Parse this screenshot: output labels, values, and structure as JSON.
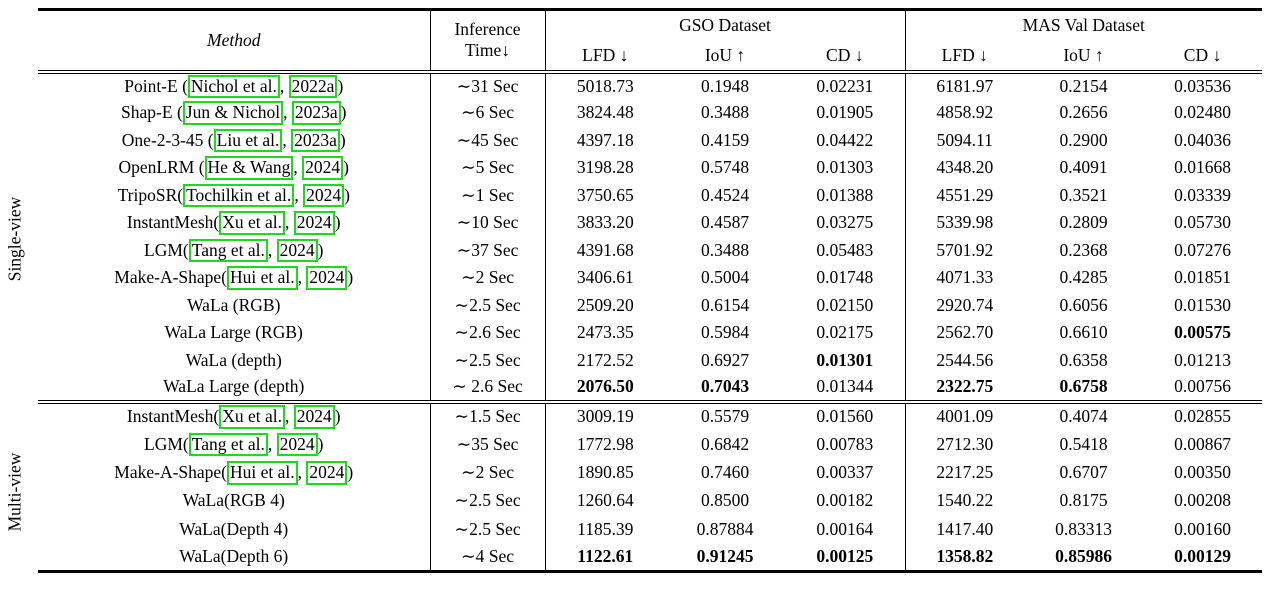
{
  "citation_box_color": "#20d820",
  "header": {
    "method": "Method",
    "time_line1": "Inference",
    "time_line2": "Time↓",
    "gso": "GSO Dataset",
    "mas": "MAS Val Dataset",
    "metrics": [
      "LFD ↓",
      "IoU ↑",
      "CD ↓",
      "LFD ↓",
      "IoU ↑",
      "CD ↓"
    ]
  },
  "groups": [
    {
      "label": "Single-view",
      "rows": [
        {
          "method_parts": [
            {
              "t": "Point-E (",
              "box": false
            },
            {
              "t": "Nichol et al.",
              "box": true
            },
            {
              "t": ", ",
              "box": false
            },
            {
              "t": "2022a",
              "box": true
            },
            {
              "t": ")",
              "box": false
            }
          ],
          "time": "∼31 Sec",
          "values": [
            "5018.73",
            "0.1948",
            "0.02231",
            "6181.97",
            "0.2154",
            "0.03536"
          ],
          "bold": [
            false,
            false,
            false,
            false,
            false,
            false
          ]
        },
        {
          "method_parts": [
            {
              "t": "Shap-E (",
              "box": false
            },
            {
              "t": "Jun & Nichol",
              "box": true
            },
            {
              "t": ", ",
              "box": false
            },
            {
              "t": "2023a",
              "box": true
            },
            {
              "t": ")",
              "box": false
            }
          ],
          "time": "∼6 Sec",
          "values": [
            "3824.48",
            "0.3488",
            "0.01905",
            "4858.92",
            "0.2656",
            "0.02480"
          ],
          "bold": [
            false,
            false,
            false,
            false,
            false,
            false
          ]
        },
        {
          "method_parts": [
            {
              "t": "One-2-3-45 (",
              "box": false
            },
            {
              "t": "Liu et al.",
              "box": true
            },
            {
              "t": ", ",
              "box": false
            },
            {
              "t": "2023a",
              "box": true
            },
            {
              "t": ")",
              "box": false
            }
          ],
          "time": "∼45 Sec",
          "values": [
            "4397.18",
            "0.4159",
            "0.04422",
            "5094.11",
            "0.2900",
            "0.04036"
          ],
          "bold": [
            false,
            false,
            false,
            false,
            false,
            false
          ]
        },
        {
          "method_parts": [
            {
              "t": "OpenLRM (",
              "box": false
            },
            {
              "t": "He & Wang",
              "box": true
            },
            {
              "t": ", ",
              "box": false
            },
            {
              "t": "2024",
              "box": true
            },
            {
              "t": ")",
              "box": false
            }
          ],
          "time": "∼5 Sec",
          "values": [
            "3198.28",
            "0.5748",
            "0.01303",
            "4348.20",
            "0.4091",
            "0.01668"
          ],
          "bold": [
            false,
            false,
            false,
            false,
            false,
            false
          ]
        },
        {
          "method_parts": [
            {
              "t": "TripoSR(",
              "box": false
            },
            {
              "t": "Tochilkin et al.",
              "box": true
            },
            {
              "t": ", ",
              "box": false
            },
            {
              "t": "2024",
              "box": true
            },
            {
              "t": ")",
              "box": false
            }
          ],
          "time": "∼1 Sec",
          "values": [
            "3750.65",
            "0.4524",
            "0.01388",
            "4551.29",
            "0.3521",
            "0.03339"
          ],
          "bold": [
            false,
            false,
            false,
            false,
            false,
            false
          ]
        },
        {
          "method_parts": [
            {
              "t": "InstantMesh(",
              "box": false
            },
            {
              "t": "Xu et al.",
              "box": true
            },
            {
              "t": ", ",
              "box": false
            },
            {
              "t": "2024",
              "box": true
            },
            {
              "t": ")",
              "box": false
            }
          ],
          "time": "∼10 Sec",
          "values": [
            "3833.20",
            "0.4587",
            "0.03275",
            "5339.98",
            "0.2809",
            "0.05730"
          ],
          "bold": [
            false,
            false,
            false,
            false,
            false,
            false
          ]
        },
        {
          "method_parts": [
            {
              "t": "LGM(",
              "box": false
            },
            {
              "t": "Tang et al.",
              "box": true
            },
            {
              "t": ", ",
              "box": false
            },
            {
              "t": "2024",
              "box": true
            },
            {
              "t": ")",
              "box": false
            }
          ],
          "time": "∼37 Sec",
          "values": [
            "4391.68",
            "0.3488",
            "0.05483",
            "5701.92",
            "0.2368",
            "0.07276"
          ],
          "bold": [
            false,
            false,
            false,
            false,
            false,
            false
          ]
        },
        {
          "method_parts": [
            {
              "t": "Make-A-Shape(",
              "box": false
            },
            {
              "t": "Hui et al.",
              "box": true
            },
            {
              "t": ", ",
              "box": false
            },
            {
              "t": "2024",
              "box": true
            },
            {
              "t": ")",
              "box": false
            }
          ],
          "time": "∼2 Sec",
          "values": [
            "3406.61",
            "0.5004",
            "0.01748",
            "4071.33",
            "0.4285",
            "0.01851"
          ],
          "bold": [
            false,
            false,
            false,
            false,
            false,
            false
          ]
        },
        {
          "method_parts": [
            {
              "t": "WaLa (RGB)",
              "box": false
            }
          ],
          "time": "∼2.5 Sec",
          "values": [
            "2509.20",
            "0.6154",
            "0.02150",
            "2920.74",
            "0.6056",
            "0.01530"
          ],
          "bold": [
            false,
            false,
            false,
            false,
            false,
            false
          ]
        },
        {
          "method_parts": [
            {
              "t": "WaLa Large (RGB)",
              "box": false
            }
          ],
          "time": "∼2.6 Sec",
          "values": [
            "2473.35",
            "0.5984",
            "0.02175",
            "2562.70",
            "0.6610",
            "0.00575"
          ],
          "bold": [
            false,
            false,
            false,
            false,
            false,
            true
          ]
        },
        {
          "method_parts": [
            {
              "t": "WaLa (depth)",
              "box": false
            }
          ],
          "time": "∼2.5 Sec",
          "values": [
            "2172.52",
            "0.6927",
            "0.01301",
            "2544.56",
            "0.6358",
            "0.01213"
          ],
          "bold": [
            false,
            false,
            true,
            false,
            false,
            false
          ]
        },
        {
          "method_parts": [
            {
              "t": "WaLa Large (depth)",
              "box": false
            }
          ],
          "time": "∼ 2.6 Sec",
          "values": [
            "2076.50",
            "0.7043",
            "0.01344",
            "2322.75",
            "0.6758",
            "0.00756"
          ],
          "bold": [
            true,
            true,
            false,
            true,
            true,
            false
          ]
        }
      ]
    },
    {
      "label": "Multi-view",
      "rows": [
        {
          "method_parts": [
            {
              "t": "InstantMesh(",
              "box": false
            },
            {
              "t": "Xu et al.",
              "box": true
            },
            {
              "t": ", ",
              "box": false
            },
            {
              "t": "2024",
              "box": true
            },
            {
              "t": ")",
              "box": false
            }
          ],
          "time": "∼1.5 Sec",
          "values": [
            "3009.19",
            "0.5579",
            "0.01560",
            "4001.09",
            "0.4074",
            "0.02855"
          ],
          "bold": [
            false,
            false,
            false,
            false,
            false,
            false
          ]
        },
        {
          "method_parts": [
            {
              "t": "LGM(",
              "box": false
            },
            {
              "t": "Tang et al.",
              "box": true
            },
            {
              "t": ", ",
              "box": false
            },
            {
              "t": "2024",
              "box": true
            },
            {
              "t": ")",
              "box": false
            }
          ],
          "time": "∼35 Sec",
          "values": [
            "1772.98",
            "0.6842",
            "0.00783",
            "2712.30",
            "0.5418",
            "0.00867"
          ],
          "bold": [
            false,
            false,
            false,
            false,
            false,
            false
          ]
        },
        {
          "method_parts": [
            {
              "t": "Make-A-Shape(",
              "box": false
            },
            {
              "t": "Hui et al.",
              "box": true
            },
            {
              "t": ", ",
              "box": false
            },
            {
              "t": "2024",
              "box": true
            },
            {
              "t": ")",
              "box": false
            }
          ],
          "time": "∼2 Sec",
          "values": [
            "1890.85",
            "0.7460",
            "0.00337",
            "2217.25",
            "0.6707",
            "0.00350"
          ],
          "bold": [
            false,
            false,
            false,
            false,
            false,
            false
          ]
        },
        {
          "method_parts": [
            {
              "t": "WaLa(RGB 4)",
              "box": false
            }
          ],
          "time": "∼2.5 Sec",
          "values": [
            "1260.64",
            "0.8500",
            "0.00182",
            "1540.22",
            "0.8175",
            "0.00208"
          ],
          "bold": [
            false,
            false,
            false,
            false,
            false,
            false
          ]
        },
        {
          "method_parts": [
            {
              "t": "WaLa(Depth 4)",
              "box": false
            }
          ],
          "time": "∼2.5 Sec",
          "values": [
            "1185.39",
            "0.87884",
            "0.00164",
            "1417.40",
            "0.83313",
            "0.00160"
          ],
          "bold": [
            false,
            false,
            false,
            false,
            false,
            false
          ]
        },
        {
          "method_parts": [
            {
              "t": "WaLa(Depth 6)",
              "box": false
            }
          ],
          "time": "∼4 Sec",
          "values": [
            "1122.61",
            "0.91245",
            "0.00125",
            "1358.82",
            "0.85986",
            "0.00129"
          ],
          "bold": [
            true,
            true,
            true,
            true,
            true,
            true
          ]
        }
      ]
    }
  ]
}
